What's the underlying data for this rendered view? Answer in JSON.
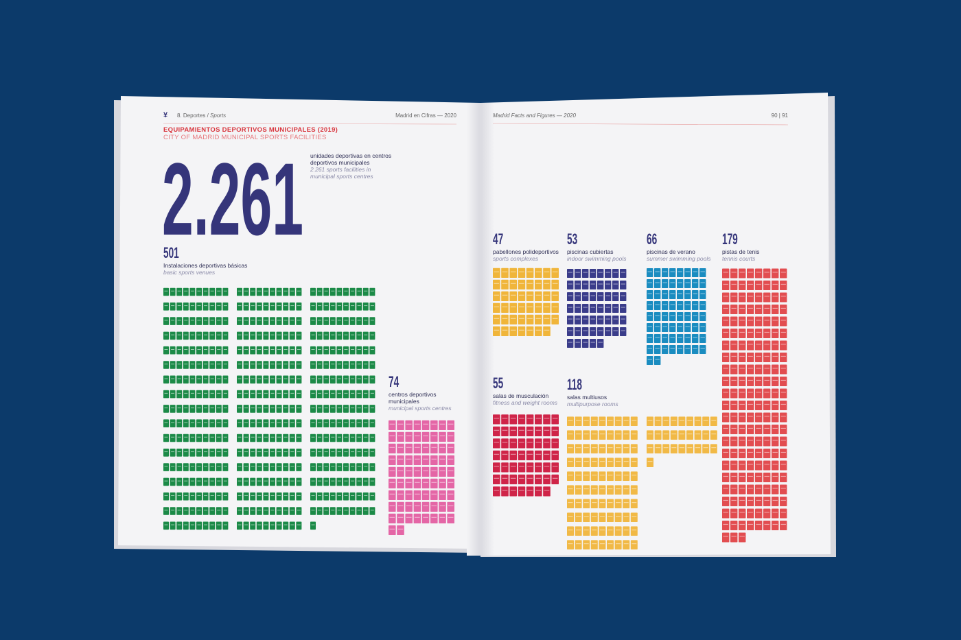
{
  "header": {
    "section": "8. Deportes /",
    "section_en": "Sports",
    "left_title": "Madrid en Cifras — 2020",
    "right_title": "Madrid Facts and Figures — 2020",
    "page_numbers": "90 | 91"
  },
  "title": "EQUIPAMIENTOS DEPORTIVOS MUNICIPALES (2019)",
  "subtitle": "CITY OF MADRID MUNICIPAL SPORTS FACILITIES",
  "total": {
    "value": "2.261",
    "label_es": [
      "unidades deportivas en centros",
      "deportivos municipales"
    ],
    "label_en": [
      "2.261 sports facilities in",
      "municipal sports centres"
    ]
  },
  "groups": [
    {
      "count": 501,
      "label_es": [
        "Instalaciones deportivas básicas"
      ],
      "label_en": [
        "basic sports venues"
      ],
      "color": "#1b8a47"
    },
    {
      "count": 74,
      "label_es": [
        "centros deportivos",
        "municipales"
      ],
      "label_en": [
        "municipal sports centres"
      ],
      "color": "#e466a6"
    },
    {
      "count": 47,
      "label_es": [
        "pabellones polideportivos"
      ],
      "label_en": [
        "sports complexes"
      ],
      "color": "#f0b53a"
    },
    {
      "count": 53,
      "label_es": [
        "piscinas cubiertas"
      ],
      "label_en": [
        "indoor swimming pools"
      ],
      "color": "#3a3c8a"
    },
    {
      "count": 66,
      "label_es": [
        "piscinas de verano"
      ],
      "label_en": [
        "summer swimming pools"
      ],
      "color": "#1a8cc0"
    },
    {
      "count": 179,
      "label_es": [
        "pistas de tenis"
      ],
      "label_en": [
        "tennis courts"
      ],
      "color": "#e24d50"
    },
    {
      "count": 55,
      "label_es": [
        "salas de musculación"
      ],
      "label_en": [
        "fitness and weight rooms"
      ],
      "color": "#cf2448"
    },
    {
      "count": 118,
      "label_es": [
        "salas multiusos"
      ],
      "label_en": [
        "multipurpose rooms"
      ],
      "color": "#f1b946"
    }
  ]
}
